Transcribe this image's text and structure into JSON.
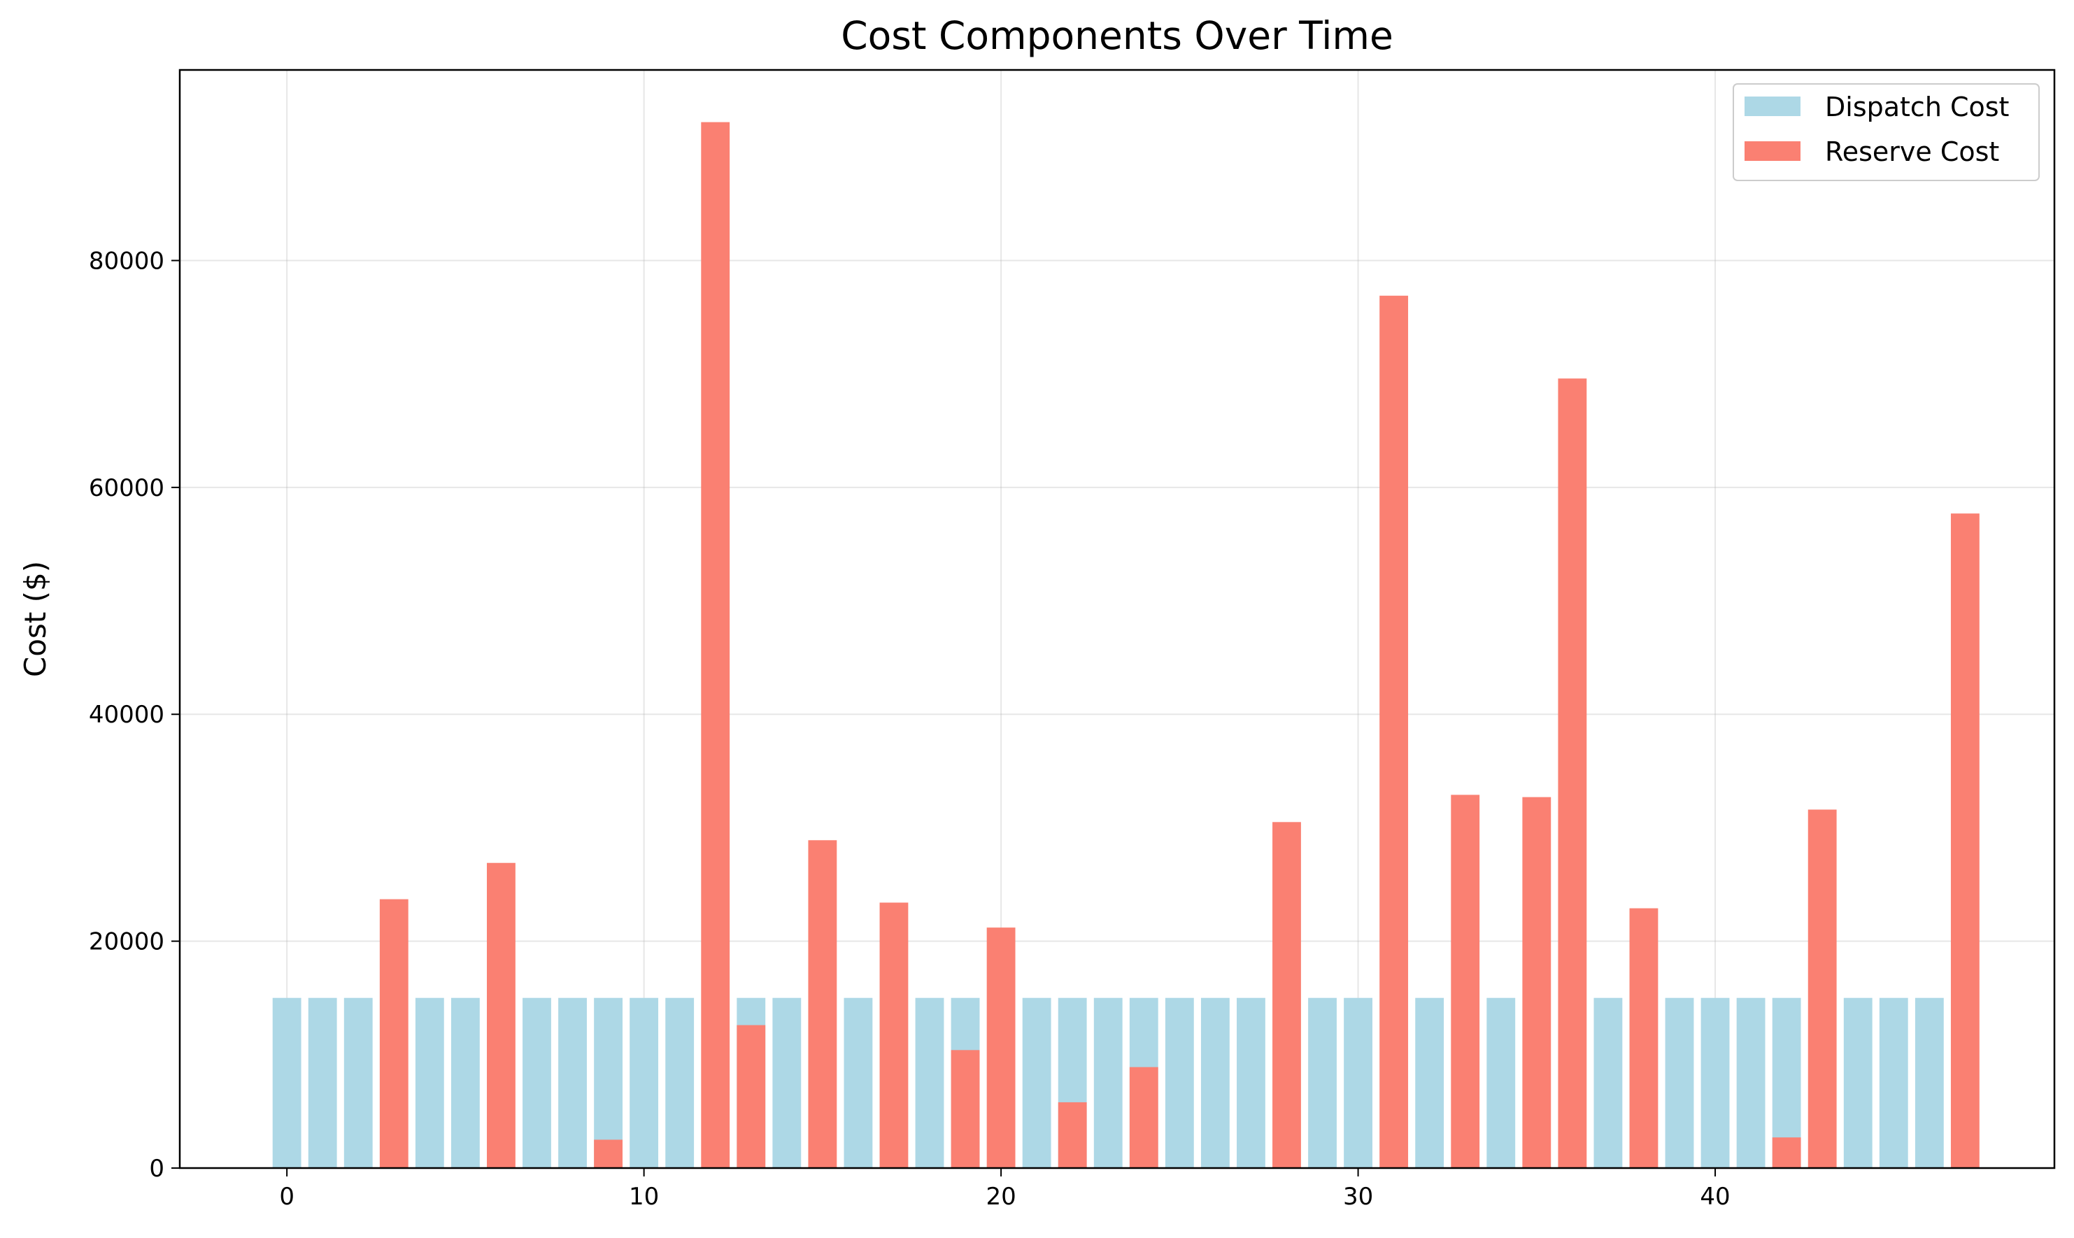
{
  "chart_data": {
    "type": "bar",
    "title": "Cost Components Over Time",
    "xlabel": "",
    "ylabel": "Cost ($)",
    "xlim": [
      -3,
      49.5
    ],
    "ylim": [
      0,
      96800
    ],
    "x_ticks": [
      0,
      10,
      20,
      30,
      40
    ],
    "y_ticks": [
      0,
      20000,
      40000,
      60000,
      80000
    ],
    "grid": true,
    "legend_position": "top-right",
    "x": [
      0,
      1,
      2,
      3,
      4,
      5,
      6,
      7,
      8,
      9,
      10,
      11,
      12,
      13,
      14,
      15,
      16,
      17,
      18,
      19,
      20,
      21,
      22,
      23,
      24,
      25,
      26,
      27,
      28,
      29,
      30,
      31,
      32,
      33,
      34,
      35,
      36,
      37,
      38,
      39,
      40,
      41,
      42,
      43,
      44,
      45,
      46,
      47
    ],
    "series": [
      {
        "name": "Dispatch Cost",
        "color": "#add8e6",
        "values": [
          15000,
          15000,
          15000,
          0,
          15000,
          15000,
          0,
          15000,
          15000,
          15000,
          15000,
          15000,
          0,
          15000,
          15000,
          0,
          15000,
          0,
          15000,
          15000,
          0,
          15000,
          15000,
          15000,
          15000,
          15000,
          15000,
          15000,
          0,
          15000,
          15000,
          0,
          15000,
          0,
          15000,
          0,
          0,
          15000,
          0,
          15000,
          15000,
          15000,
          15000,
          0,
          15000,
          15000,
          15000,
          0
        ]
      },
      {
        "name": "Reserve Cost",
        "color": "#fa8072",
        "values": [
          0,
          0,
          0,
          23700,
          0,
          0,
          26900,
          0,
          0,
          2500,
          0,
          0,
          92200,
          12600,
          0,
          28900,
          0,
          23400,
          0,
          10400,
          21200,
          0,
          5800,
          0,
          8900,
          0,
          0,
          0,
          30500,
          0,
          0,
          76900,
          0,
          32900,
          0,
          32700,
          69600,
          0,
          22900,
          0,
          0,
          0,
          2700,
          31600,
          0,
          0,
          0,
          57700
        ]
      }
    ]
  }
}
